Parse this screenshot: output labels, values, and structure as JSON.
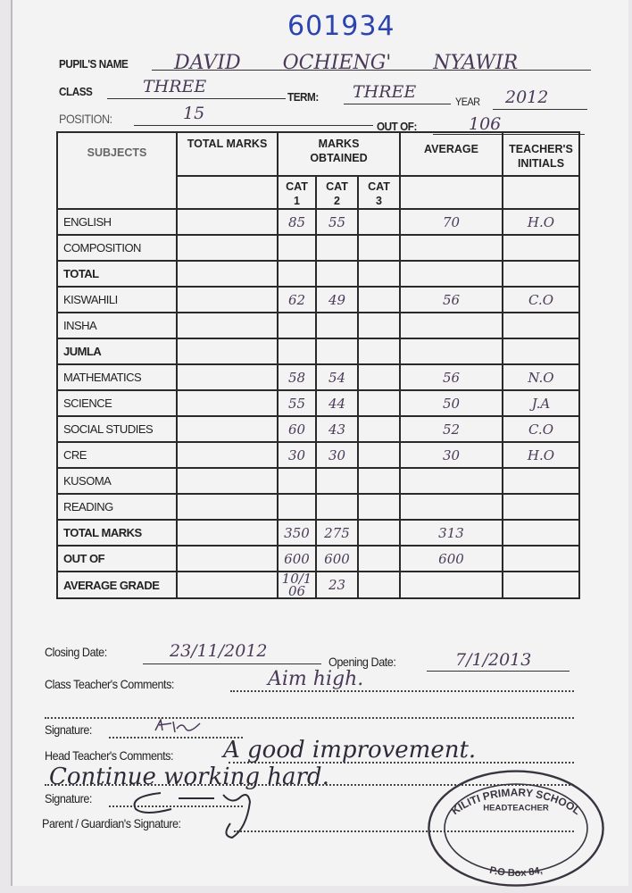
{
  "serial_number": "601934",
  "header": {
    "pupil_name_label": "PUPIL'S NAME",
    "pupil_name": "DAVID   OCHIENG'   NYAWIR",
    "class_label": "CLASS",
    "class": "THREE",
    "term_label": "TERM:",
    "term": "THREE",
    "year_label": "YEAR",
    "year": "2012",
    "position_label": "POSITION:",
    "position": "15",
    "out_of_label": "OUT OF:",
    "out_of": "106"
  },
  "table": {
    "headers": {
      "subjects": "SUBJECTS",
      "total_marks": "TOTAL MARKS",
      "marks_obtained": "MARKS OBTAINED",
      "cat1": "CAT 1",
      "cat2": "CAT 2",
      "cat3": "CAT 3",
      "average": "AVERAGE",
      "teachers_initials": "TEACHER'S INITIALS"
    },
    "rows": [
      {
        "subject": "ENGLISH",
        "cat1": "85",
        "cat2": "55",
        "average": "70",
        "initials": "H.O"
      },
      {
        "subject": "COMPOSITION"
      },
      {
        "subject": "TOTAL"
      },
      {
        "subject": "KISWAHILI",
        "cat1": "62",
        "cat2": "49",
        "average": "56",
        "initials": "C.O"
      },
      {
        "subject": "INSHA"
      },
      {
        "subject": "JUMLA"
      },
      {
        "subject": "MATHEMATICS",
        "cat1": "58",
        "cat2": "54",
        "average": "56",
        "initials": "N.O"
      },
      {
        "subject": "SCIENCE",
        "cat1": "55",
        "cat2": "44",
        "average": "50",
        "initials": "J.A"
      },
      {
        "subject": "SOCIAL STUDIES",
        "cat1": "60",
        "cat2": "43",
        "average": "52",
        "initials": "C.O"
      },
      {
        "subject": "CRE",
        "cat1": "30",
        "cat2": "30",
        "average": "30",
        "initials": "H.O"
      },
      {
        "subject": "KUSOMA"
      },
      {
        "subject": "READING"
      },
      {
        "subject": "TOTAL MARKS",
        "cat1": "350",
        "cat2": "275",
        "average": "313"
      },
      {
        "subject": "OUT OF",
        "cat1": "600",
        "cat2": "600",
        "average": "600"
      },
      {
        "subject": "AVERAGE GRADE",
        "cat1": "10/106",
        "cat2": "23"
      }
    ]
  },
  "footer": {
    "closing_date_label": "Closing Date:",
    "closing_date": "23/11/2012",
    "opening_date_label": "Opening Date:",
    "opening_date": "7/1/2013",
    "class_teacher_comments_label": "Class Teacher's Comments:",
    "class_teacher_comments": "Aim high.",
    "signature_label": "Signature:",
    "head_teacher_comments_label": "Head Teacher's Comments:",
    "head_teacher_comments_line1": "A good improvement.",
    "head_teacher_comments_line2": "Continue working hard.",
    "signature2_label": "Signature:",
    "parent_signature_label": "Parent / Guardian's Signature:"
  },
  "stamp": {
    "school": "KILITI PRIMARY SCHOOL",
    "role": "HEADTEACHER",
    "address": "P.O Box 84,"
  }
}
